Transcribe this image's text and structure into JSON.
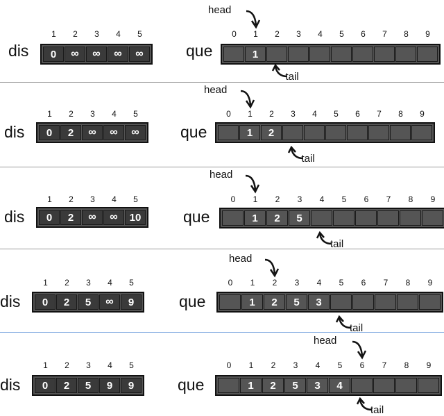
{
  "dis_label": "dis",
  "que_label": "que",
  "head_label": "head",
  "tail_label": "tail",
  "dis_indices": [
    "1",
    "2",
    "3",
    "4",
    "5"
  ],
  "que_indices": [
    "0",
    "1",
    "2",
    "3",
    "4",
    "5",
    "6",
    "7",
    "8",
    "9"
  ],
  "panels": [
    {
      "dis": [
        "0",
        "∞",
        "∞",
        "∞",
        "∞"
      ],
      "que": [
        "",
        "1",
        "",
        "",
        "",
        "",
        "",
        "",
        "",
        ""
      ],
      "head": 1,
      "tail": 2
    },
    {
      "dis": [
        "0",
        "2",
        "∞",
        "∞",
        "∞"
      ],
      "que": [
        "",
        "1",
        "2",
        "",
        "",
        "",
        "",
        "",
        "",
        ""
      ],
      "head": 1,
      "tail": 3
    },
    {
      "dis": [
        "0",
        "2",
        "∞",
        "∞",
        "10"
      ],
      "que": [
        "",
        "1",
        "2",
        "5",
        "",
        "",
        "",
        "",
        "",
        ""
      ],
      "head": 1,
      "tail": 4
    },
    {
      "dis": [
        "0",
        "2",
        "5",
        "∞",
        "9"
      ],
      "que": [
        "",
        "1",
        "2",
        "5",
        "3",
        "",
        "",
        "",
        "",
        ""
      ],
      "head": 2,
      "tail": 5
    },
    {
      "dis": [
        "0",
        "2",
        "5",
        "9",
        "9"
      ],
      "que": [
        "",
        "1",
        "2",
        "5",
        "3",
        "4",
        "",
        "",
        "",
        ""
      ],
      "head": 6,
      "tail": 6
    }
  ]
}
